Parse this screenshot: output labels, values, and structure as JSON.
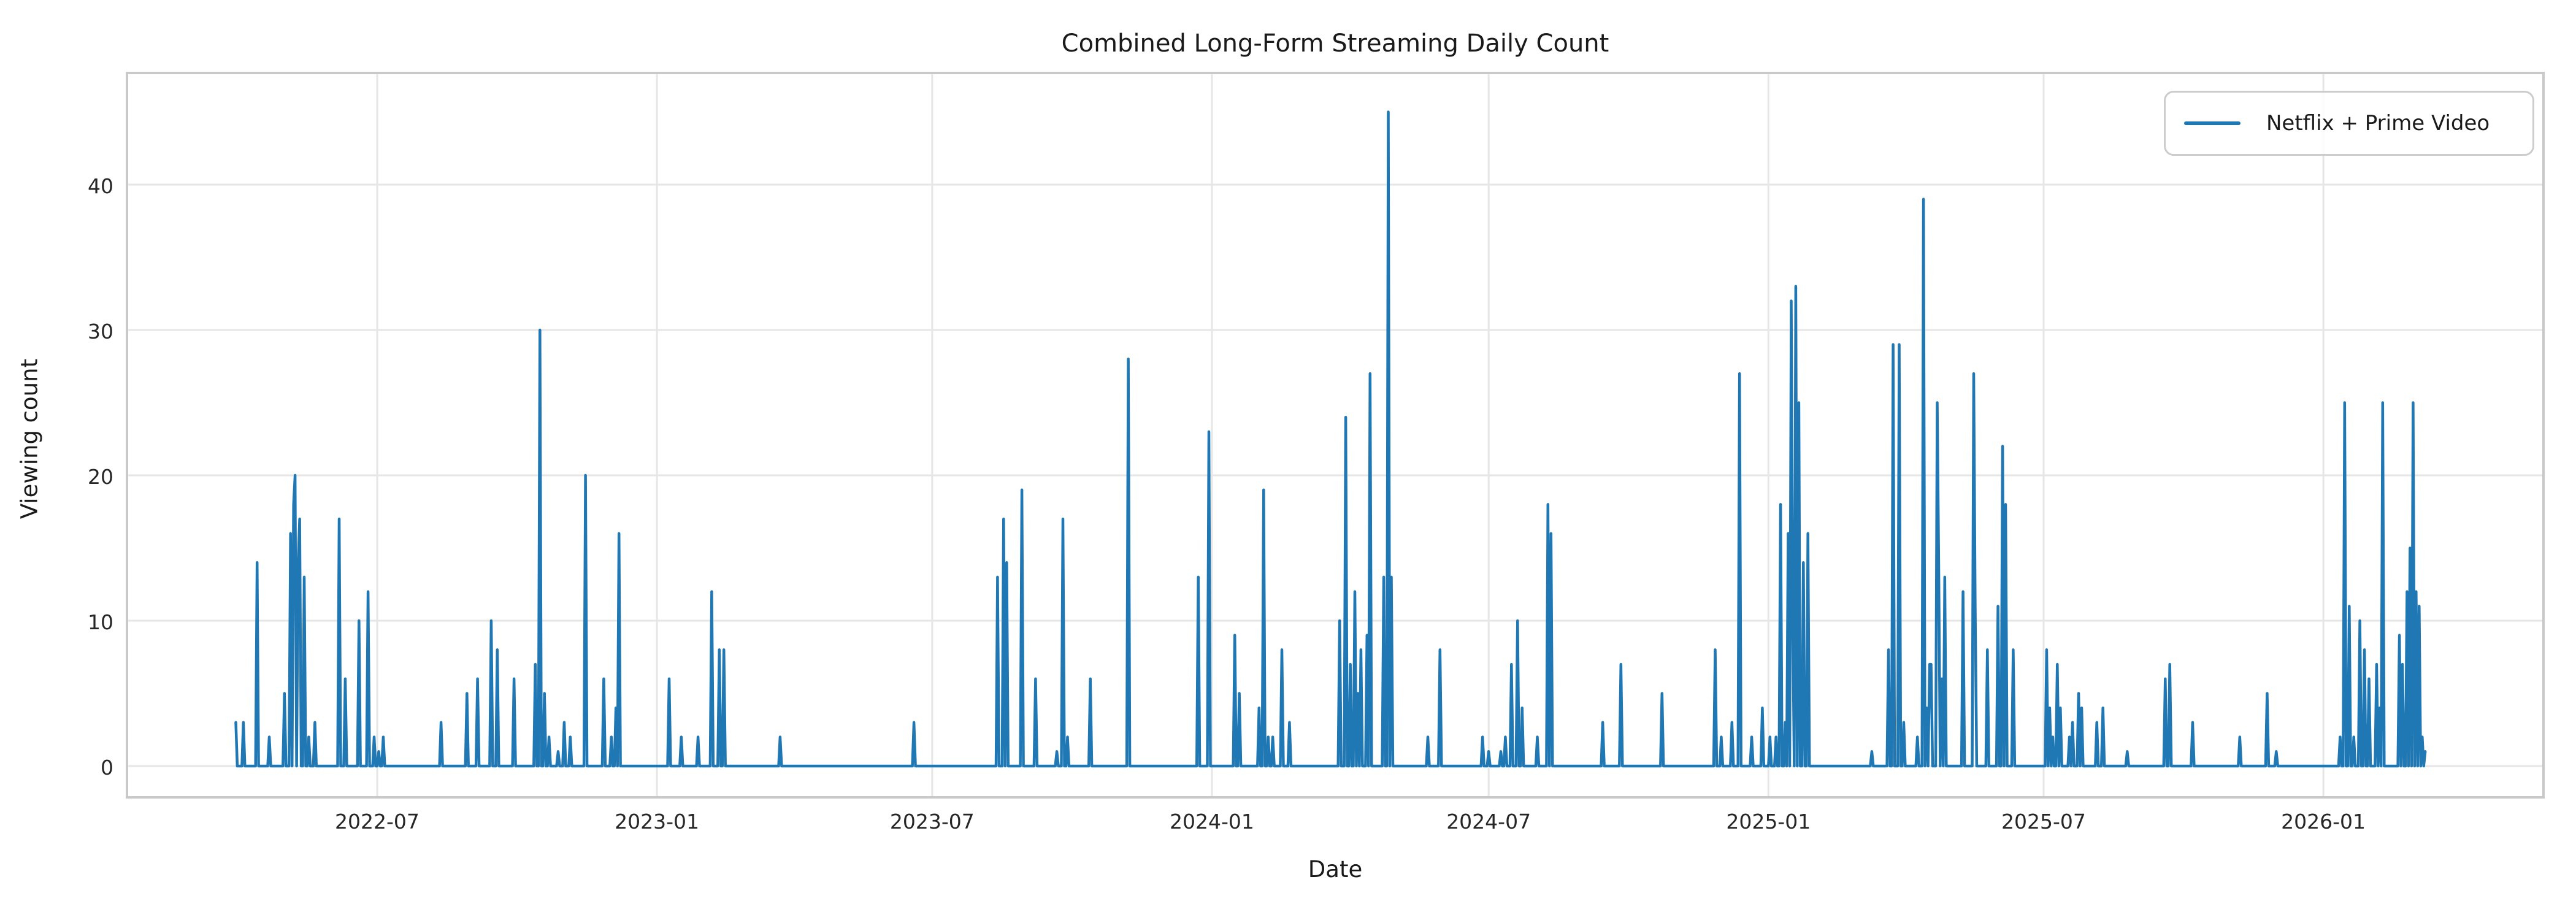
{
  "title": "Combined Long-Form Streaming Daily Count",
  "legend": {
    "label": "Netflix + Prime Video"
  },
  "colors": {
    "line": "#1f77b4",
    "grid": "#e6e6e6",
    "spine": "#c9c9c9",
    "text": "#262626",
    "background": "#ffffff"
  },
  "chart_data": {
    "type": "line",
    "title": "Combined Long-Form Streaming Daily Count",
    "xlabel": "Date",
    "ylabel": "Viewing count",
    "legend_entries": [
      "Netflix + Prime Video"
    ],
    "legend_position": "upper right",
    "grid": true,
    "ylim": [
      -2.25,
      47.25
    ],
    "yticks": [
      0,
      10,
      20,
      30,
      40
    ],
    "xticks": [
      {
        "label": "2022-07",
        "date": "2022-07-01"
      },
      {
        "label": "2023-01",
        "date": "2023-01-01"
      },
      {
        "label": "2023-07",
        "date": "2023-07-01"
      },
      {
        "label": "2024-01",
        "date": "2024-01-01"
      },
      {
        "label": "2024-07",
        "date": "2024-07-01"
      },
      {
        "label": "2025-01",
        "date": "2025-01-01"
      },
      {
        "label": "2025-07",
        "date": "2025-07-01"
      },
      {
        "label": "2026-01",
        "date": "2026-01-01"
      }
    ],
    "series_name": "Netflix + Prime Video",
    "frequency": "daily",
    "date_range": [
      "2022-03-30",
      "2026-03-09"
    ],
    "fill_value": 0,
    "note": "Daily viewing counts; dates not listed in nonzero_points have value 0",
    "nonzero_points": [
      [
        "2022-03-30",
        3
      ],
      [
        "2022-04-04",
        3
      ],
      [
        "2022-04-13",
        14
      ],
      [
        "2022-04-21",
        2
      ],
      [
        "2022-05-01",
        5
      ],
      [
        "2022-05-05",
        16
      ],
      [
        "2022-05-07",
        18
      ],
      [
        "2022-05-08",
        20
      ],
      [
        "2022-05-10",
        14
      ],
      [
        "2022-05-11",
        17
      ],
      [
        "2022-05-14",
        13
      ],
      [
        "2022-05-17",
        2
      ],
      [
        "2022-05-21",
        3
      ],
      [
        "2022-06-06",
        17
      ],
      [
        "2022-06-10",
        6
      ],
      [
        "2022-06-19",
        10
      ],
      [
        "2022-06-25",
        12
      ],
      [
        "2022-06-29",
        2
      ],
      [
        "2022-07-02",
        1
      ],
      [
        "2022-07-05",
        2
      ],
      [
        "2022-08-12",
        3
      ],
      [
        "2022-08-29",
        5
      ],
      [
        "2022-09-05",
        6
      ],
      [
        "2022-09-14",
        10
      ],
      [
        "2022-09-18",
        8
      ],
      [
        "2022-09-29",
        6
      ],
      [
        "2022-10-13",
        7
      ],
      [
        "2022-10-16",
        30
      ],
      [
        "2022-10-19",
        5
      ],
      [
        "2022-10-22",
        2
      ],
      [
        "2022-10-28",
        1
      ],
      [
        "2022-11-01",
        3
      ],
      [
        "2022-11-05",
        2
      ],
      [
        "2022-11-15",
        20
      ],
      [
        "2022-11-27",
        6
      ],
      [
        "2022-12-02",
        2
      ],
      [
        "2022-12-05",
        4
      ],
      [
        "2022-12-07",
        16
      ],
      [
        "2023-01-09",
        6
      ],
      [
        "2023-01-17",
        2
      ],
      [
        "2023-01-28",
        2
      ],
      [
        "2023-02-06",
        12
      ],
      [
        "2023-02-11",
        8
      ],
      [
        "2023-02-14",
        8
      ],
      [
        "2023-03-23",
        2
      ],
      [
        "2023-06-19",
        3
      ],
      [
        "2023-08-13",
        13
      ],
      [
        "2023-08-17",
        17
      ],
      [
        "2023-08-19",
        14
      ],
      [
        "2023-08-29",
        19
      ],
      [
        "2023-09-07",
        6
      ],
      [
        "2023-09-21",
        1
      ],
      [
        "2023-09-25",
        17
      ],
      [
        "2023-09-28",
        2
      ],
      [
        "2023-10-13",
        6
      ],
      [
        "2023-11-07",
        28
      ],
      [
        "2023-12-23",
        13
      ],
      [
        "2023-12-30",
        23
      ],
      [
        "2024-01-16",
        9
      ],
      [
        "2024-01-19",
        5
      ],
      [
        "2024-02-01",
        4
      ],
      [
        "2024-02-04",
        19
      ],
      [
        "2024-02-07",
        2
      ],
      [
        "2024-02-10",
        2
      ],
      [
        "2024-02-16",
        8
      ],
      [
        "2024-02-21",
        3
      ],
      [
        "2024-03-25",
        10
      ],
      [
        "2024-03-29",
        24
      ],
      [
        "2024-04-01",
        7
      ],
      [
        "2024-04-04",
        12
      ],
      [
        "2024-04-06",
        5
      ],
      [
        "2024-04-08",
        8
      ],
      [
        "2024-04-12",
        9
      ],
      [
        "2024-04-14",
        27
      ],
      [
        "2024-04-23",
        13
      ],
      [
        "2024-04-26",
        45
      ],
      [
        "2024-04-28",
        13
      ],
      [
        "2024-05-22",
        2
      ],
      [
        "2024-05-30",
        8
      ],
      [
        "2024-06-27",
        2
      ],
      [
        "2024-07-01",
        1
      ],
      [
        "2024-07-09",
        1
      ],
      [
        "2024-07-12",
        2
      ],
      [
        "2024-07-16",
        7
      ],
      [
        "2024-07-20",
        10
      ],
      [
        "2024-07-23",
        4
      ],
      [
        "2024-08-02",
        2
      ],
      [
        "2024-08-09",
        18
      ],
      [
        "2024-08-11",
        16
      ],
      [
        "2024-09-14",
        3
      ],
      [
        "2024-09-26",
        7
      ],
      [
        "2024-10-23",
        5
      ],
      [
        "2024-11-27",
        8
      ],
      [
        "2024-12-01",
        2
      ],
      [
        "2024-12-08",
        3
      ],
      [
        "2024-12-13",
        27
      ],
      [
        "2024-12-21",
        2
      ],
      [
        "2024-12-28",
        4
      ],
      [
        "2025-01-02",
        2
      ],
      [
        "2025-01-06",
        2
      ],
      [
        "2025-01-09",
        18
      ],
      [
        "2025-01-12",
        3
      ],
      [
        "2025-01-14",
        16
      ],
      [
        "2025-01-16",
        32
      ],
      [
        "2025-01-17",
        10
      ],
      [
        "2025-01-19",
        33
      ],
      [
        "2025-01-21",
        25
      ],
      [
        "2025-01-24",
        14
      ],
      [
        "2025-01-27",
        16
      ],
      [
        "2025-03-10",
        1
      ],
      [
        "2025-03-21",
        8
      ],
      [
        "2025-03-24",
        29
      ],
      [
        "2025-03-28",
        29
      ],
      [
        "2025-03-31",
        3
      ],
      [
        "2025-04-09",
        2
      ],
      [
        "2025-04-13",
        39
      ],
      [
        "2025-04-15",
        4
      ],
      [
        "2025-04-17",
        7
      ],
      [
        "2025-04-18",
        7
      ],
      [
        "2025-04-22",
        25
      ],
      [
        "2025-04-23",
        14
      ],
      [
        "2025-04-25",
        6
      ],
      [
        "2025-04-27",
        13
      ],
      [
        "2025-05-09",
        12
      ],
      [
        "2025-05-16",
        27
      ],
      [
        "2025-05-17",
        11
      ],
      [
        "2025-05-25",
        8
      ],
      [
        "2025-06-01",
        11
      ],
      [
        "2025-06-04",
        22
      ],
      [
        "2025-06-06",
        18
      ],
      [
        "2025-06-11",
        8
      ],
      [
        "2025-07-03",
        8
      ],
      [
        "2025-07-05",
        4
      ],
      [
        "2025-07-07",
        2
      ],
      [
        "2025-07-10",
        7
      ],
      [
        "2025-07-12",
        4
      ],
      [
        "2025-07-18",
        2
      ],
      [
        "2025-07-20",
        3
      ],
      [
        "2025-07-24",
        5
      ],
      [
        "2025-07-26",
        4
      ],
      [
        "2025-08-05",
        3
      ],
      [
        "2025-08-09",
        4
      ],
      [
        "2025-08-25",
        1
      ],
      [
        "2025-09-19",
        6
      ],
      [
        "2025-09-22",
        7
      ],
      [
        "2025-10-07",
        3
      ],
      [
        "2025-11-07",
        2
      ],
      [
        "2025-11-25",
        5
      ],
      [
        "2025-12-01",
        1
      ],
      [
        "2026-01-12",
        2
      ],
      [
        "2026-01-15",
        25
      ],
      [
        "2026-01-18",
        11
      ],
      [
        "2026-01-21",
        2
      ],
      [
        "2026-01-25",
        10
      ],
      [
        "2026-01-28",
        8
      ],
      [
        "2026-01-31",
        6
      ],
      [
        "2026-02-05",
        7
      ],
      [
        "2026-02-07",
        4
      ],
      [
        "2026-02-09",
        25
      ],
      [
        "2026-02-20",
        9
      ],
      [
        "2026-02-22",
        7
      ],
      [
        "2026-02-25",
        12
      ],
      [
        "2026-02-27",
        15
      ],
      [
        "2026-03-01",
        25
      ],
      [
        "2026-03-03",
        12
      ],
      [
        "2026-03-05",
        11
      ],
      [
        "2026-03-07",
        2
      ],
      [
        "2026-03-09",
        1
      ]
    ]
  }
}
